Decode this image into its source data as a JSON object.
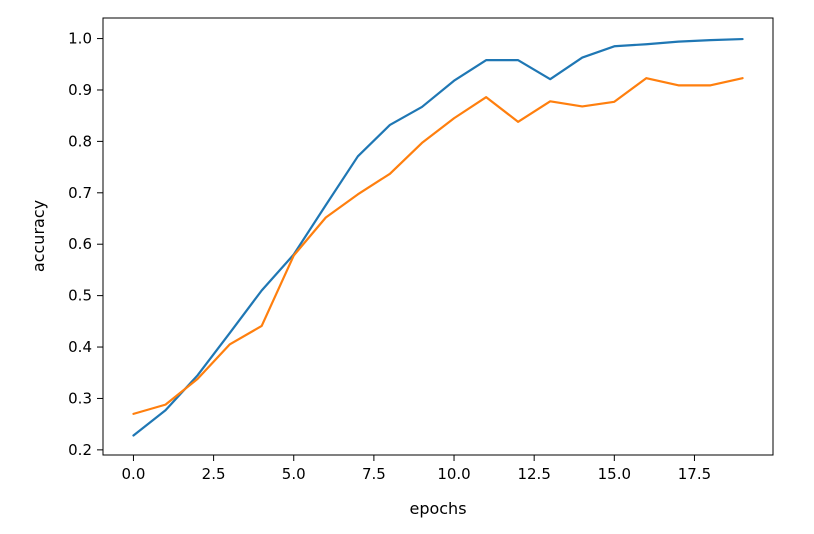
{
  "chart_data": {
    "type": "line",
    "xlabel": "epochs",
    "ylabel": "accuracy",
    "xlim": [
      -0.95,
      19.95
    ],
    "ylim": [
      0.19,
      1.04
    ],
    "xticks": [
      "0.0",
      "2.5",
      "5.0",
      "7.5",
      "10.0",
      "12.5",
      "15.0",
      "17.5"
    ],
    "yticks": [
      "0.2",
      "0.3",
      "0.4",
      "0.5",
      "0.6",
      "0.7",
      "0.8",
      "0.9",
      "1.0"
    ],
    "grid": false,
    "x": [
      0,
      1,
      2,
      3,
      4,
      5,
      6,
      7,
      8,
      9,
      10,
      11,
      12,
      13,
      14,
      15,
      16,
      17,
      18,
      19
    ],
    "series": [
      {
        "color": "#1f77b4",
        "values": [
          0.228,
          0.277,
          0.345,
          0.427,
          0.51,
          0.58,
          0.676,
          0.771,
          0.832,
          0.867,
          0.918,
          0.958,
          0.958,
          0.921,
          0.963,
          0.985,
          0.989,
          0.994,
          0.997,
          0.999
        ]
      },
      {
        "color": "#ff7f0e",
        "values": [
          0.27,
          0.288,
          0.338,
          0.405,
          0.441,
          0.578,
          0.652,
          0.697,
          0.737,
          0.797,
          0.845,
          0.886,
          0.838,
          0.878,
          0.868,
          0.877,
          0.923,
          0.909,
          0.909,
          0.923
        ]
      }
    ]
  }
}
